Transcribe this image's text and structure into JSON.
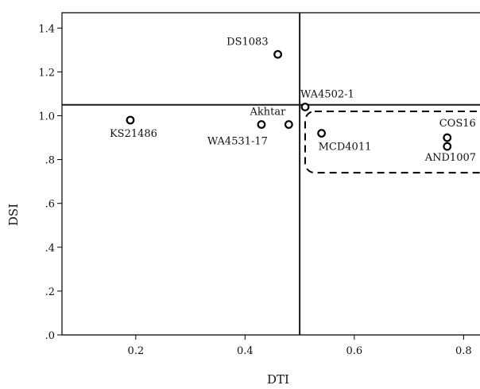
{
  "chart_data": {
    "type": "scatter",
    "xlabel": "DTI",
    "ylabel": "DSI",
    "xlim": [
      0.065,
      0.83
    ],
    "ylim": [
      0.0,
      1.47
    ],
    "x_ticks": [
      0.2,
      0.4,
      0.6,
      0.8
    ],
    "x_tick_labels": [
      "0.2",
      "0.4",
      "0.6",
      "0.8"
    ],
    "y_ticks": [
      0.0,
      0.2,
      0.4,
      0.6,
      0.8,
      1.0,
      1.2,
      1.4
    ],
    "y_tick_labels": [
      ".0",
      ".2",
      ".4",
      ".6",
      ".8",
      "1.0",
      "1.2",
      "1.4"
    ],
    "grid": false,
    "reference_lines": {
      "x": 0.5,
      "y": 1.05
    },
    "points": [
      {
        "label": "DS1083",
        "x": 0.46,
        "y": 1.28
      },
      {
        "label": "WA4502-1",
        "x": 0.51,
        "y": 1.04
      },
      {
        "label": "KS21486",
        "x": 0.19,
        "y": 0.98
      },
      {
        "label": "Akhtar",
        "x": 0.48,
        "y": 0.96
      },
      {
        "label": "WA4531-17",
        "x": 0.43,
        "y": 0.96
      },
      {
        "label": "MCD4011",
        "x": 0.54,
        "y": 0.92
      },
      {
        "label": "COS16",
        "x": 0.77,
        "y": 0.9
      },
      {
        "label": "AND1007",
        "x": 0.77,
        "y": 0.86
      }
    ],
    "highlight_region": {
      "x": [
        0.51,
        0.83
      ],
      "y": [
        0.74,
        1.02
      ]
    }
  }
}
